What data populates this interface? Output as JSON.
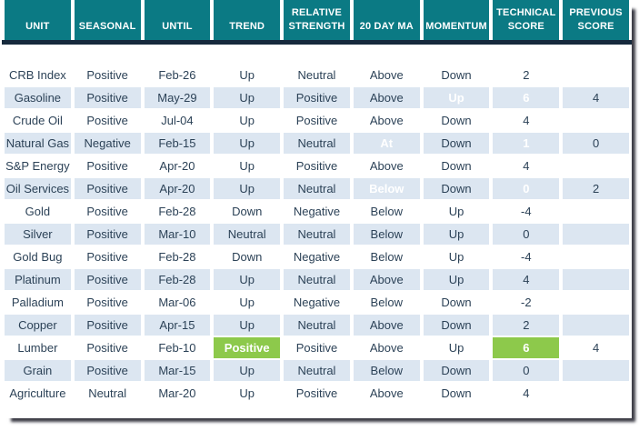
{
  "colors": {
    "header_bg": "#0b7a84",
    "header_text": "#ffffff",
    "divider": "#16293c",
    "stripe": "#dce6f1",
    "text": "#2c4257",
    "green": "#8dc94b",
    "red": "#f23b3b",
    "shadow": "#3c3c46"
  },
  "table": {
    "columns": [
      {
        "key": "unit",
        "label": "UNIT"
      },
      {
        "key": "seasonal",
        "label": "SEASONAL"
      },
      {
        "key": "until",
        "label": "UNTIL"
      },
      {
        "key": "trend",
        "label": "TREND"
      },
      {
        "key": "relative-strength",
        "label": "RELATIVE STRENGTH"
      },
      {
        "key": "20-day-ma",
        "label": "20 DAY MA"
      },
      {
        "key": "momentum",
        "label": "MOMENTUM"
      },
      {
        "key": "technical-score",
        "label": "TECHNICAL SCORE"
      },
      {
        "key": "previous-score",
        "label": "PREVIOUS SCORE"
      }
    ],
    "rows": [
      {
        "cells": [
          "CRB Index",
          "Positive",
          "Feb-26",
          "Up",
          "Neutral",
          "Above",
          "Down",
          "2",
          ""
        ],
        "highlights": {}
      },
      {
        "cells": [
          "Gasoline",
          "Positive",
          "May-29",
          "Up",
          "Positive",
          "Above",
          "Up",
          "6",
          "4"
        ],
        "highlights": {
          "6": "green",
          "7": "green"
        }
      },
      {
        "cells": [
          "Crude Oil",
          "Positive",
          "Jul-04",
          "Up",
          "Positive",
          "Above",
          "Down",
          "4",
          ""
        ],
        "highlights": {}
      },
      {
        "cells": [
          "Natural Gas",
          "Negative",
          "Feb-15",
          "Up",
          "Neutral",
          "At",
          "Down",
          "1",
          "0"
        ],
        "highlights": {
          "5": "green",
          "7": "green"
        }
      },
      {
        "cells": [
          "S&P Energy",
          "Positive",
          "Apr-20",
          "Up",
          "Positive",
          "Above",
          "Down",
          "4",
          ""
        ],
        "highlights": {}
      },
      {
        "cells": [
          "Oil Services",
          "Positive",
          "Apr-20",
          "Up",
          "Neutral",
          "Below",
          "Down",
          "0",
          "2"
        ],
        "highlights": {
          "5": "red",
          "7": "red"
        }
      },
      {
        "cells": [
          "Gold",
          "Positive",
          "Feb-28",
          "Down",
          "Negative",
          "Below",
          "Up",
          "-4",
          ""
        ],
        "highlights": {}
      },
      {
        "cells": [
          "Silver",
          "Positive",
          "Mar-10",
          "Neutral",
          "Neutral",
          "Below",
          "Up",
          "0",
          ""
        ],
        "highlights": {}
      },
      {
        "cells": [
          "Gold Bug",
          "Positive",
          "Feb-28",
          "Down",
          "Negative",
          "Below",
          "Up",
          "-4",
          ""
        ],
        "highlights": {}
      },
      {
        "cells": [
          "Platinum",
          "Positive",
          "Feb-28",
          "Up",
          "Neutral",
          "Above",
          "Up",
          "4",
          ""
        ],
        "highlights": {}
      },
      {
        "cells": [
          "Palladium",
          "Positive",
          "Mar-06",
          "Up",
          "Negative",
          "Below",
          "Down",
          "-2",
          ""
        ],
        "highlights": {}
      },
      {
        "cells": [
          "Copper",
          "Positive",
          "Apr-15",
          "Up",
          "Neutral",
          "Above",
          "Down",
          "2",
          ""
        ],
        "highlights": {}
      },
      {
        "cells": [
          "Lumber",
          "Positive",
          "Feb-10",
          "Positive",
          "Positive",
          "Above",
          "Up",
          "6",
          "4"
        ],
        "highlights": {
          "3": "green",
          "7": "green"
        }
      },
      {
        "cells": [
          "Grain",
          "Positive",
          "Mar-15",
          "Up",
          "Neutral",
          "Below",
          "Down",
          "0",
          ""
        ],
        "highlights": {}
      },
      {
        "cells": [
          "Agriculture",
          "Neutral",
          "Mar-20",
          "Up",
          "Positive",
          "Above",
          "Down",
          "4",
          ""
        ],
        "highlights": {}
      }
    ]
  }
}
